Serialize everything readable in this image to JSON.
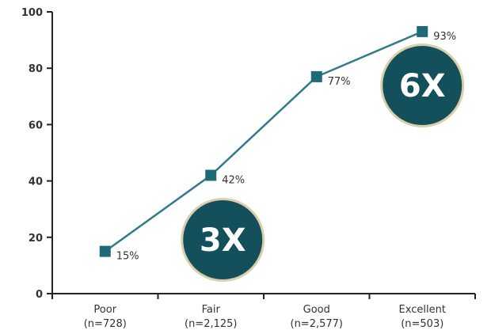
{
  "chart_data": {
    "type": "line",
    "title": "",
    "xlabel": "",
    "ylabel": "",
    "categories": [
      "Poor",
      "Fair",
      "Good",
      "Excellent"
    ],
    "category_counts": [
      "(n=728)",
      "(n=2,125)",
      "(n=2,577)",
      "(n=503)"
    ],
    "series": [
      {
        "values": [
          15,
          42,
          77,
          93
        ],
        "labels": [
          "15%",
          "42%",
          "77%",
          "93%"
        ]
      }
    ],
    "ylim": [
      0,
      100
    ],
    "yticks": [
      0,
      20,
      40,
      60,
      80,
      100
    ],
    "grid": false,
    "legend": "none",
    "annotations": [
      {
        "text": "3X",
        "anchor_category": "Fair"
      },
      {
        "text": "6X",
        "anchor_category": "Excellent"
      }
    ],
    "colors": {
      "line": "#2e7b8a",
      "marker": "#1f6a79",
      "badge_fill": "#144f5c",
      "badge_ring": "#d9cfaa",
      "axis": "#222222"
    }
  }
}
